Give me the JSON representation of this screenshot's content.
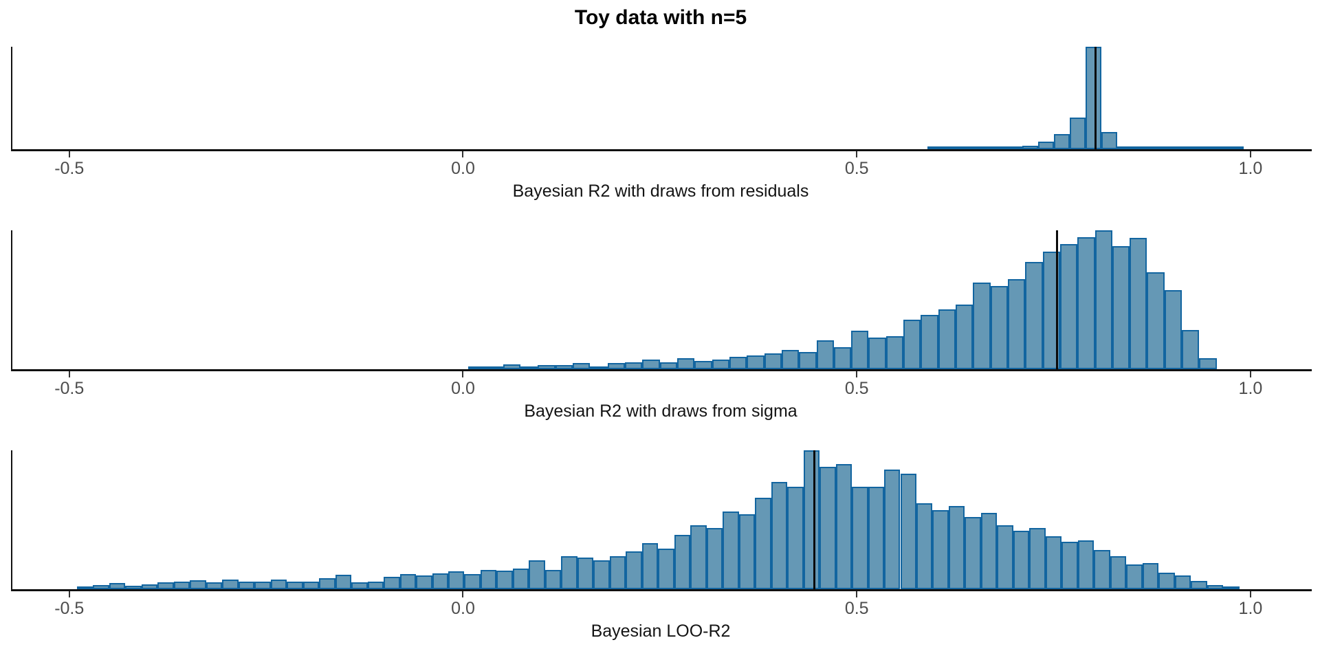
{
  "title": "Toy data with n=5",
  "colors": {
    "background": "#ffffff",
    "bar_fill": "#6598B5",
    "bar_stroke": "#1265A0",
    "axis_line": "#111111",
    "tick_label": "#4d4d4d",
    "axis_title": "#141414",
    "median_line": "#0a0a0a"
  },
  "chart_data": [
    {
      "type": "histogram",
      "xlabel": "Bayesian R2 with draws from residuals",
      "xlim": [
        -0.574,
        1.076
      ],
      "x_ticks": [
        -0.5,
        0.0,
        0.5,
        1.0
      ],
      "x_tick_labels": [
        "-0.5",
        "0.0",
        "0.5",
        "1.0"
      ],
      "median_line_x": 0.8,
      "bin_start": 0.588,
      "bin_width": 0.0201,
      "bar_heights_pct": [
        0.7,
        0.7,
        1,
        1.3,
        1.7,
        2.3,
        3.4,
        7.4,
        14.8,
        30.9,
        100,
        16.8,
        2,
        1.3,
        1,
        1,
        0.7,
        0.7,
        0.7,
        0.7
      ],
      "grid": false,
      "legend": false
    },
    {
      "type": "histogram",
      "xlabel": "Bayesian R2 with draws from sigma",
      "xlim": [
        -0.574,
        1.076
      ],
      "x_ticks": [
        -0.5,
        0.0,
        0.5,
        1.0
      ],
      "x_tick_labels": [
        "-0.5",
        "0.0",
        "0.5",
        "1.0"
      ],
      "median_line_x": 0.751,
      "bin_start": 0.005,
      "bin_width": 0.0221,
      "bar_heights_pct": [
        0.5,
        0.5,
        3.5,
        1.5,
        3,
        3,
        4.5,
        2,
        4.5,
        5,
        7,
        5,
        7.7,
        6,
        7,
        9,
        10,
        11.4,
        14,
        12.4,
        21,
        16,
        27.7,
        22.8,
        24,
        35.6,
        39,
        43,
        46.5,
        62.6,
        60,
        65,
        77,
        84.6,
        90,
        95,
        100,
        88.6,
        94.5,
        70,
        57,
        28,
        8
      ],
      "grid": false,
      "legend": false
    },
    {
      "type": "histogram",
      "xlabel": "Bayesian LOO-R2",
      "xlim": [
        -0.574,
        1.076
      ],
      "x_ticks": [
        -0.5,
        0.0,
        0.5,
        1.0
      ],
      "x_tick_labels": [
        "-0.5",
        "0.0",
        "0.5",
        "1.0"
      ],
      "median_line_x": 0.443,
      "bin_start": -0.492,
      "bin_width": 0.0205,
      "bar_heights_pct": [
        1.5,
        3,
        4.5,
        2.5,
        3.5,
        5,
        5.5,
        6.5,
        5,
        7,
        5.5,
        5.5,
        7,
        5.5,
        5.5,
        8,
        10.5,
        5,
        5.5,
        9,
        11,
        10,
        11.5,
        13,
        11,
        14,
        13.5,
        15,
        21,
        14,
        24,
        23,
        21,
        24,
        27,
        33,
        29,
        39,
        46,
        44,
        56,
        54,
        66,
        77,
        74,
        100,
        88,
        90,
        74,
        74,
        86,
        83,
        62,
        57,
        60,
        52,
        55,
        46,
        42,
        44,
        38,
        34,
        35,
        28,
        24,
        18,
        19,
        12,
        10,
        6,
        3,
        1.5
      ],
      "grid": false,
      "legend": false
    }
  ]
}
